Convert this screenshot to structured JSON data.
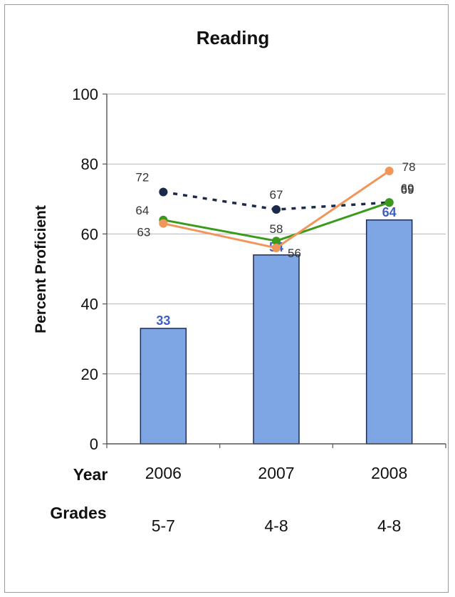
{
  "chart_data": {
    "type": "bar",
    "title": "Reading",
    "ylabel": "Percent Proficient",
    "xlabel": "Year",
    "ylim": [
      0,
      100
    ],
    "yticks": [
      0,
      20,
      40,
      60,
      80,
      100
    ],
    "categories": [
      "2006",
      "2007",
      "2008"
    ],
    "grades_label": "Grades",
    "grades": [
      "5-7",
      "4-8",
      "4-8"
    ],
    "bars": {
      "values": [
        33,
        54,
        64
      ],
      "labels": [
        "33",
        "54",
        "64"
      ],
      "color": "#7ea6e4"
    },
    "lines": [
      {
        "values": [
          72,
          67,
          69
        ],
        "labels": [
          "72",
          "67",
          "69"
        ],
        "color": "#1b2a4a",
        "style": "dotted"
      },
      {
        "values": [
          64,
          58,
          69
        ],
        "labels": [
          "64",
          "58",
          "69"
        ],
        "color": "#3a9a1c",
        "style": "solid"
      },
      {
        "values": [
          63,
          56,
          78
        ],
        "labels": [
          "63",
          "56",
          "78"
        ],
        "color": "#f0965a",
        "style": "solid"
      }
    ],
    "grid": true
  }
}
